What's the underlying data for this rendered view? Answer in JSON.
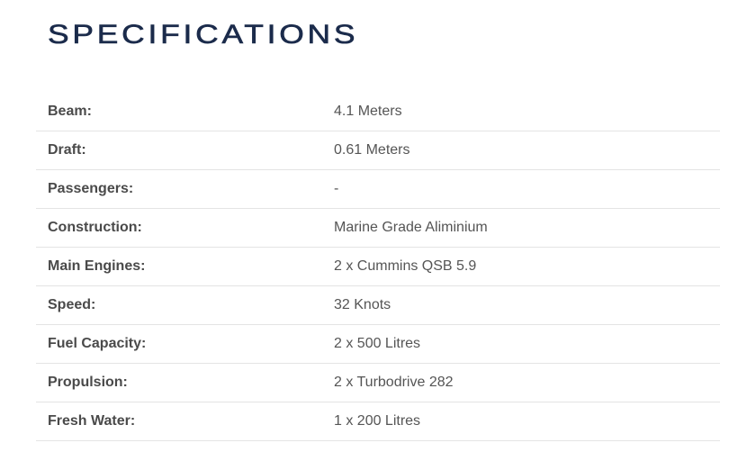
{
  "title": "SPECIFICATIONS",
  "colors": {
    "title": "#1b2b4b",
    "divider": "#e4e4e4"
  },
  "specs": [
    {
      "label": "Beam:",
      "value": "4.1 Meters"
    },
    {
      "label": "Draft:",
      "value": "0.61 Meters"
    },
    {
      "label": "Passengers:",
      "value": "-"
    },
    {
      "label": "Construction:",
      "value": "Marine Grade Aliminium"
    },
    {
      "label": "Main Engines:",
      "value": "2 x Cummins QSB 5.9"
    },
    {
      "label": "Speed:",
      "value": "32 Knots"
    },
    {
      "label": "Fuel Capacity:",
      "value": "2 x 500 Litres"
    },
    {
      "label": "Propulsion:",
      "value": "2 x Turbodrive 282"
    },
    {
      "label": "Fresh Water:",
      "value": "1 x 200 Litres"
    }
  ]
}
